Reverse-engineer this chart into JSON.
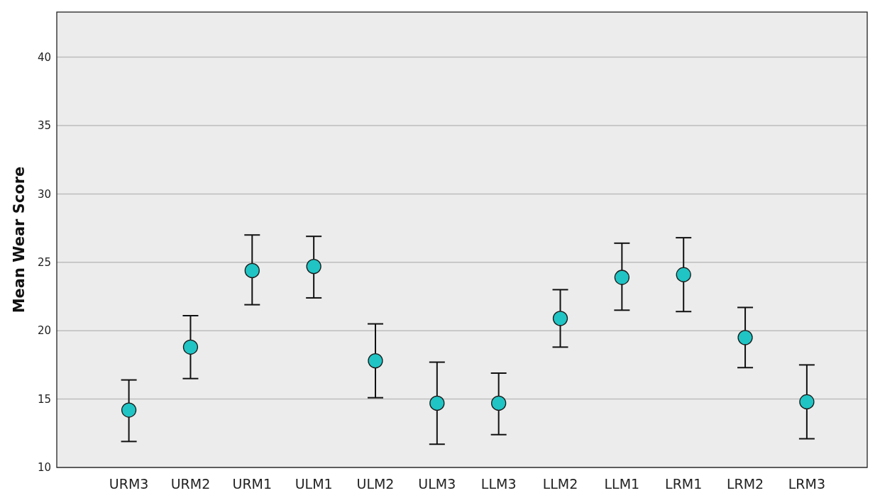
{
  "chart_data": {
    "type": "scatter",
    "ylabel": "Mean Wear Score",
    "categories": [
      "URM3",
      "URM2",
      "URM1",
      "ULM1",
      "ULM2",
      "ULM3",
      "LLM3",
      "LLM2",
      "LLM1",
      "LRM1",
      "LRM2",
      "LRM3"
    ],
    "values": [
      14.2,
      18.8,
      24.4,
      24.7,
      17.8,
      14.7,
      14.7,
      20.9,
      23.9,
      24.1,
      19.5,
      14.8
    ],
    "errors": [
      [
        11.9,
        16.4
      ],
      [
        16.5,
        21.1
      ],
      [
        21.9,
        27.0
      ],
      [
        22.4,
        26.9
      ],
      [
        15.1,
        20.5
      ],
      [
        11.7,
        17.7
      ],
      [
        12.4,
        16.9
      ],
      [
        18.8,
        23.0
      ],
      [
        21.5,
        26.4
      ],
      [
        21.4,
        26.8
      ],
      [
        17.3,
        21.7
      ],
      [
        12.1,
        17.5
      ]
    ],
    "color": "#20c4c4",
    "marker": "circle",
    "ylim": [
      10,
      43.3
    ],
    "yticks": [
      10,
      15,
      20,
      25,
      30,
      35,
      40
    ],
    "grid": "y"
  }
}
